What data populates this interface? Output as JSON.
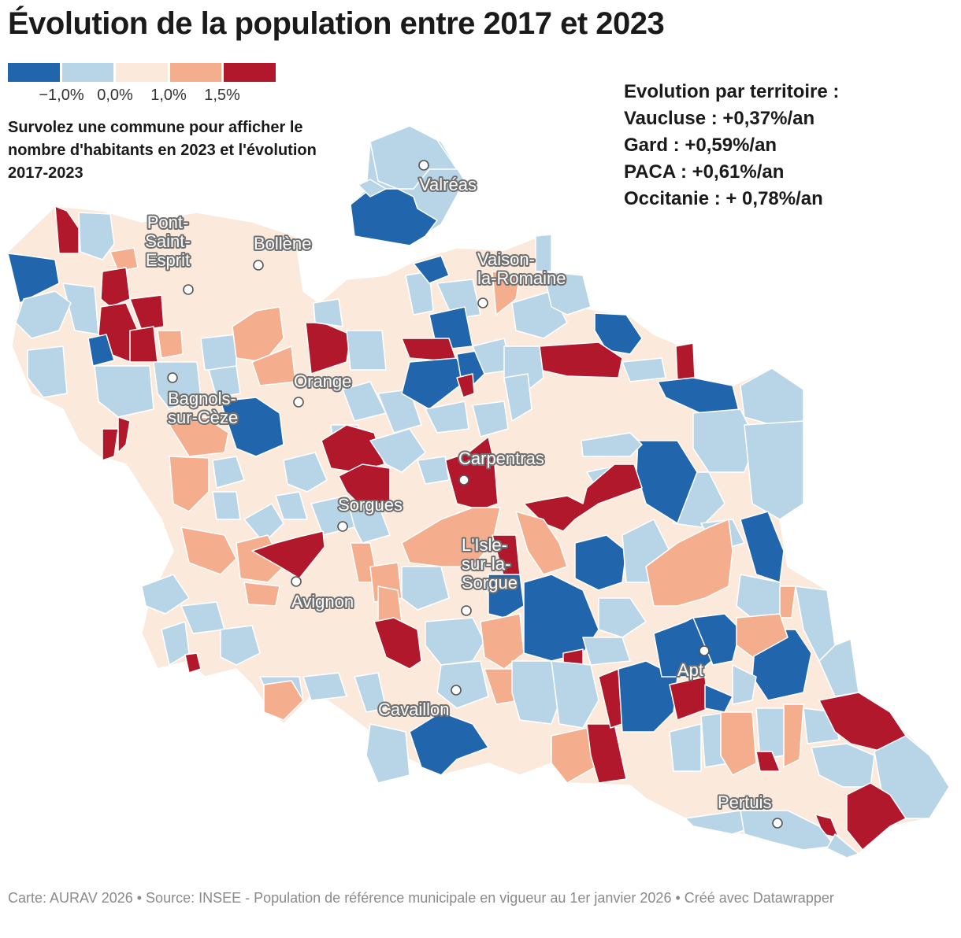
{
  "title": "Évolution de la population entre 2017 et 2023",
  "legend": {
    "colors": [
      "#2166ac",
      "#b8d5e8",
      "#fbeadb",
      "#f4ae8e",
      "#b2182b"
    ],
    "labels": [
      "−1,0%",
      "0,0%",
      "1,0%",
      "1,5%"
    ]
  },
  "hint": "Survolez une commune pour afficher le nombre d'habitants en 2023 et l'évolution 2017-2023",
  "stats": {
    "heading": "Evolution par territoire :",
    "lines": [
      "Vaucluse : +0,37%/an",
      "Gard : +0,59%/an",
      "PACA : +0,61%/an",
      "Occitanie : + 0,78%/an"
    ]
  },
  "cities": [
    {
      "name": "Valréas",
      "lines": [
        "Valréas"
      ]
    },
    {
      "name": "Bollène",
      "lines": [
        "Bollène"
      ]
    },
    {
      "name": "Pont-Saint-Esprit",
      "lines": [
        "Pont-",
        "Saint-",
        "Esprit"
      ]
    },
    {
      "name": "Vaison-la-Romaine",
      "lines": [
        "Vaison-",
        "la-Romaine"
      ]
    },
    {
      "name": "Orange",
      "lines": [
        "Orange"
      ]
    },
    {
      "name": "Bagnols-sur-Cèze",
      "lines": [
        "Bagnols-",
        "sur-Cèze"
      ]
    },
    {
      "name": "Carpentras",
      "lines": [
        "Carpentras"
      ]
    },
    {
      "name": "Sorgues",
      "lines": [
        "Sorgues"
      ]
    },
    {
      "name": "L'Isle-sur-la-Sorgue",
      "lines": [
        "L'Isle-",
        "sur-la-",
        "Sorgue"
      ]
    },
    {
      "name": "Avignon",
      "lines": [
        "Avignon"
      ]
    },
    {
      "name": "Apt",
      "lines": [
        "Apt"
      ]
    },
    {
      "name": "Cavaillon",
      "lines": [
        "Cavaillon"
      ]
    },
    {
      "name": "Pertuis",
      "lines": [
        "Pertuis"
      ]
    }
  ],
  "footer": "Carte: AURAV 2026 • Source: INSEE - Population de référence municipale en vigueur au 1er janvier 2026 • Créé avec Datawrapper"
}
